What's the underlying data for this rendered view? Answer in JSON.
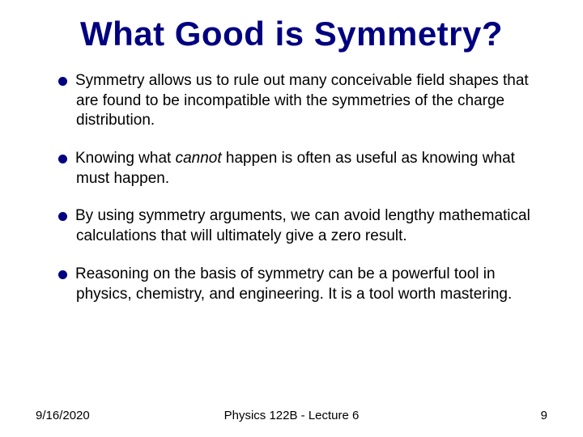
{
  "slide": {
    "title": "What Good is Symmetry?",
    "title_color": "#000080",
    "title_fontsize": 42,
    "background": "#ffffff",
    "bullet_color": "#000080",
    "body_color": "#000000",
    "body_fontsize": 19,
    "bullets": [
      {
        "pre": "Symmetry allows us to rule out many conceivable field shapes that are found to be incompatible with the symmetries of the charge distribution.",
        "emph": "",
        "post": ""
      },
      {
        "pre": "Knowing what ",
        "emph": "cannot",
        "post": " happen is often as useful as knowing what must happen."
      },
      {
        "pre": "By using symmetry arguments, we can avoid lengthy mathematical calculations that will ultimately give a zero result.",
        "emph": "",
        "post": ""
      },
      {
        "pre": "Reasoning on the basis of symmetry can be a powerful tool in physics, chemistry, and engineering.  It is a tool worth mastering.",
        "emph": "",
        "post": ""
      }
    ]
  },
  "footer": {
    "date": "9/16/2020",
    "center": "Physics 122B  -  Lecture 6",
    "page": "9"
  }
}
